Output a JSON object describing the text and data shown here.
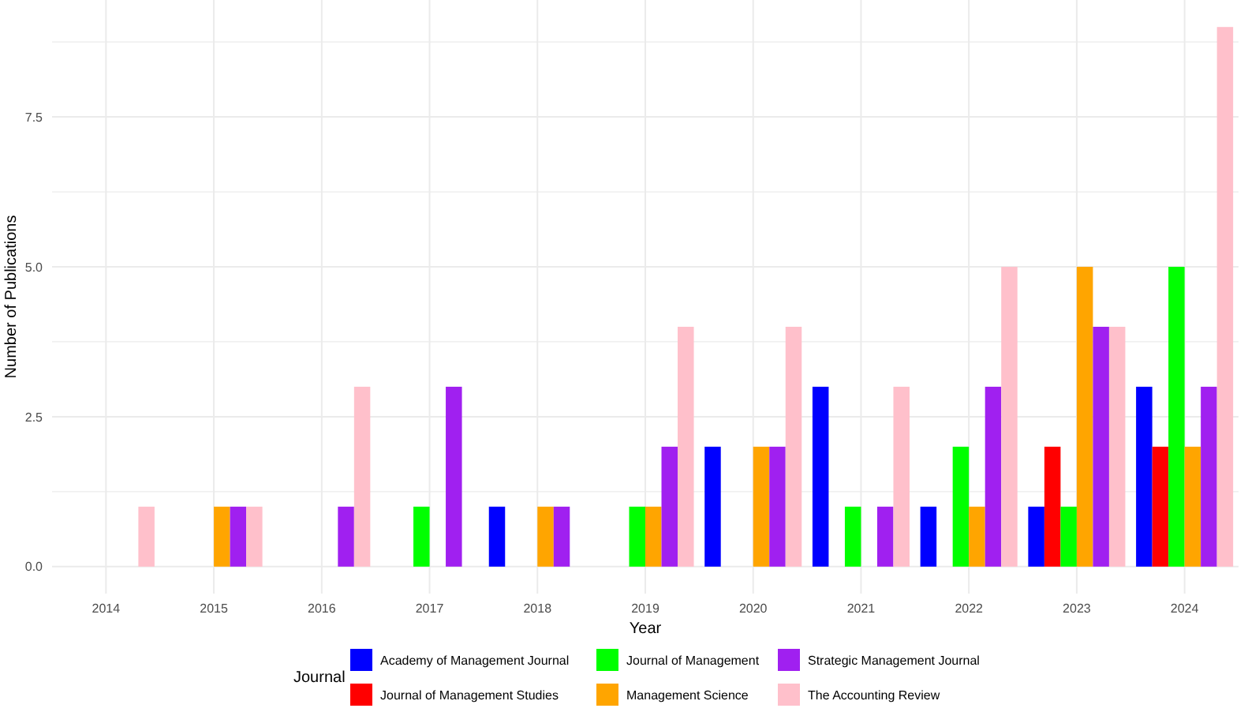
{
  "chart_data": {
    "type": "bar",
    "xlabel": "Year",
    "ylabel": "Number of Publications",
    "legend_title": "Journal",
    "categories": [
      "2014",
      "2015",
      "2016",
      "2017",
      "2018",
      "2019",
      "2020",
      "2021",
      "2022",
      "2023",
      "2024"
    ],
    "series": [
      {
        "name": "Academy of Management Journal",
        "color": "#0000ff",
        "values": [
          null,
          null,
          null,
          null,
          1,
          null,
          2,
          3,
          1,
          1,
          3
        ]
      },
      {
        "name": "Journal of Management Studies",
        "color": "#ff0000",
        "values": [
          null,
          null,
          null,
          null,
          null,
          null,
          null,
          null,
          null,
          2,
          2
        ]
      },
      {
        "name": "Journal of Management",
        "color": "#00ff00",
        "values": [
          null,
          null,
          null,
          1,
          null,
          1,
          null,
          1,
          2,
          1,
          5
        ]
      },
      {
        "name": "Management Science",
        "color": "#ffa500",
        "values": [
          null,
          1,
          null,
          null,
          1,
          1,
          2,
          null,
          1,
          5,
          2
        ]
      },
      {
        "name": "Strategic Management Journal",
        "color": "#a020f0",
        "values": [
          null,
          1,
          1,
          3,
          1,
          2,
          2,
          1,
          3,
          4,
          3
        ]
      },
      {
        "name": "The Accounting Review",
        "color": "#ffc0cb",
        "values": [
          1,
          1,
          3,
          null,
          null,
          4,
          4,
          3,
          5,
          4,
          9
        ]
      }
    ],
    "ylim": [
      -0.45,
      9.45
    ],
    "yticks": [
      {
        "value": 0,
        "label": "0.0"
      },
      {
        "value": 1.25,
        "label": null
      },
      {
        "value": 2.5,
        "label": "2.5"
      },
      {
        "value": 3.75,
        "label": null
      },
      {
        "value": 5,
        "label": "5.0"
      },
      {
        "value": 6.25,
        "label": null
      },
      {
        "value": 7.5,
        "label": "7.5"
      },
      {
        "value": 8.75,
        "label": null
      }
    ],
    "grid": true,
    "legend": "bottom"
  }
}
